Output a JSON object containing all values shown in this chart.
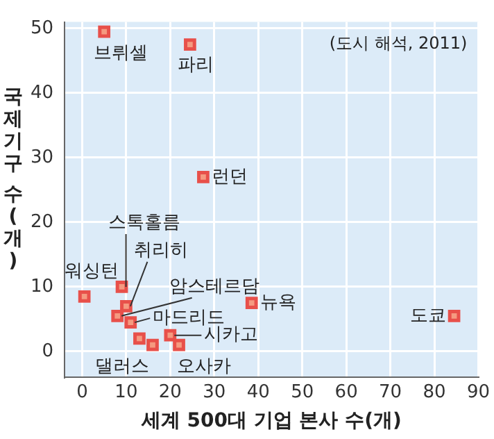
{
  "chart_data": {
    "type": "scatter",
    "xlabel": "세계 500대 기업 본사 수(개)",
    "ylabel": "국제기구 수(개)",
    "x": [
      5,
      24.5,
      27.5,
      0.5,
      9,
      10,
      8,
      11,
      13,
      16,
      20,
      22,
      38.5,
      84.5
    ],
    "values": [
      49.5,
      47.5,
      27,
      8.5,
      10,
      7,
      5.5,
      4.5,
      2,
      1,
      2.5,
      1,
      7.5,
      5.5
    ],
    "color": "#e8504a",
    "marker": "square",
    "xlim": [
      -4,
      90
    ],
    "xticks": [
      0,
      10,
      20,
      30,
      40,
      50,
      60,
      70,
      80,
      90
    ],
    "ylim": [
      -4,
      51
    ],
    "yticks": [
      0,
      10,
      20,
      30,
      40,
      50
    ],
    "grid": true,
    "legend": false,
    "annotations": [
      "(도시 해석, 2011)",
      {
        "text": "브뤼셀",
        "x": 5,
        "y": 49.5
      },
      {
        "text": "파리",
        "x": 24.5,
        "y": 47.5
      },
      {
        "text": "런던",
        "x": 27.5,
        "y": 27
      },
      {
        "text": "워싱턴",
        "x": 0.5,
        "y": 8.5
      },
      {
        "text": "스톡홀름",
        "x": 9,
        "y": 10
      },
      {
        "text": "취리히",
        "x": 10,
        "y": 7
      },
      {
        "text": "암스테르담",
        "x": 8,
        "y": 5.5
      },
      {
        "text": "마드리드",
        "x": 11,
        "y": 4.5
      },
      {
        "text": "댈러스",
        "x": 16,
        "y": 1
      },
      {
        "text": "시카고",
        "x": 20,
        "y": 2.5
      },
      {
        "text": "오사카",
        "x": 22,
        "y": 1
      },
      {
        "text": "뉴욕",
        "x": 38.5,
        "y": 7.5
      },
      {
        "text": "도쿄",
        "x": 84.5,
        "y": 5.5
      }
    ]
  }
}
